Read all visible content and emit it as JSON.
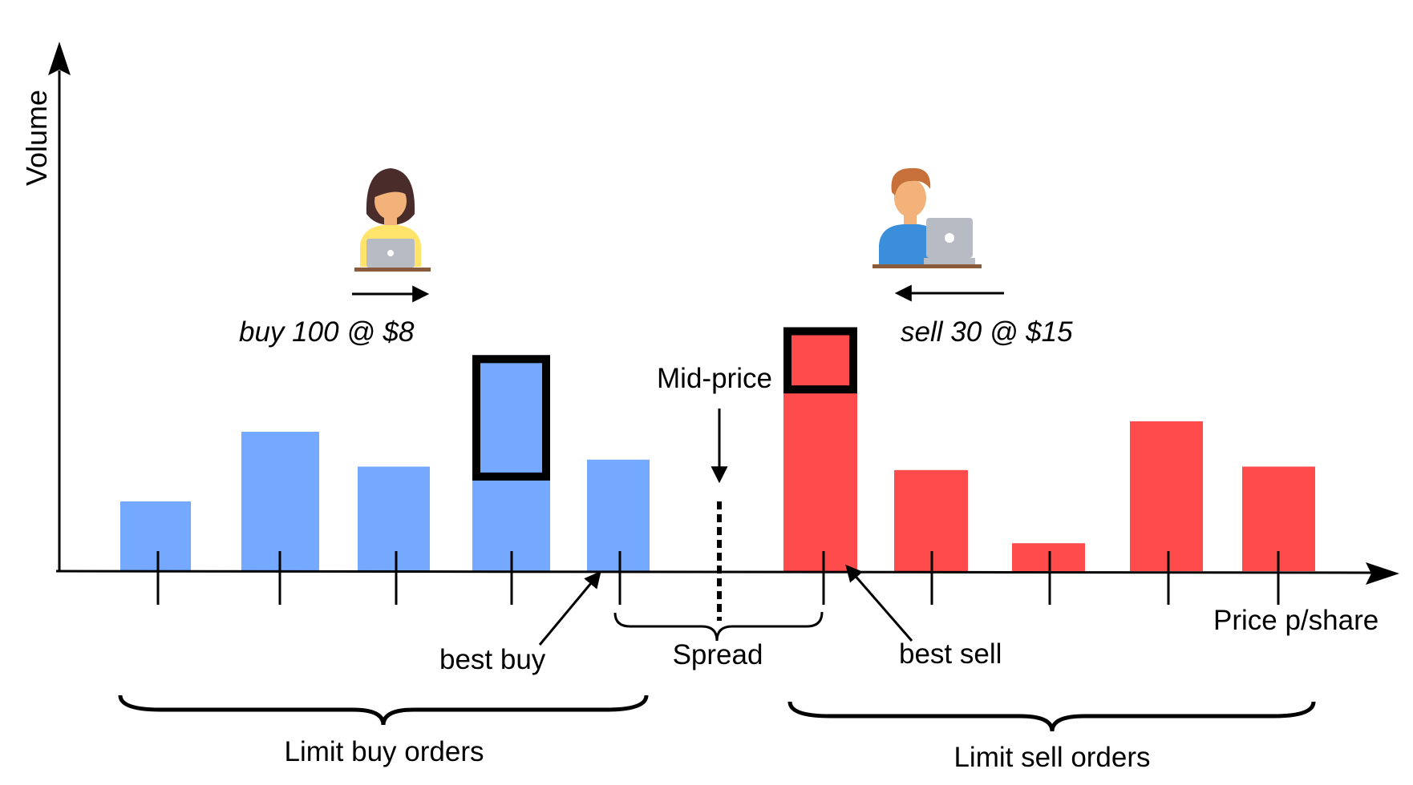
{
  "colors": {
    "buy": "#74A9FF",
    "sell": "#FF4B4B",
    "ink": "#000000",
    "skin": "#F2B27A",
    "buyer_hair": "#4A2C2A",
    "buyer_shirt": "#FFE36B",
    "seller_hair": "#C8703A",
    "seller_shirt": "#3B8ED9",
    "laptop": "#B7BCC4",
    "desk": "#8A5A3C"
  },
  "axes": {
    "y_label": "Volume",
    "x_label": "Price p/share"
  },
  "buy_orders": [
    {
      "volume": 1.0
    },
    {
      "volume": 2.0
    },
    {
      "volume": 1.5
    },
    {
      "volume": 3.1,
      "new_order_volume": 1.8
    },
    {
      "volume": 1.6
    }
  ],
  "sell_orders": [
    {
      "volume": 3.5,
      "new_order_volume": 0.95
    },
    {
      "volume": 1.45
    },
    {
      "volume": 0.4
    },
    {
      "volume": 2.15
    },
    {
      "volume": 1.5
    }
  ],
  "annotations": {
    "buy_order": "buy 100 @ $8",
    "sell_order": "sell 30 @ $15",
    "mid_price": "Mid-price",
    "spread": "Spread",
    "best_buy": "best buy",
    "best_sell": "best sell",
    "limit_buy": "Limit buy orders",
    "limit_sell": "Limit sell orders"
  },
  "icons": {
    "buyer": "woman-with-laptop-icon",
    "seller": "man-with-laptop-icon"
  }
}
